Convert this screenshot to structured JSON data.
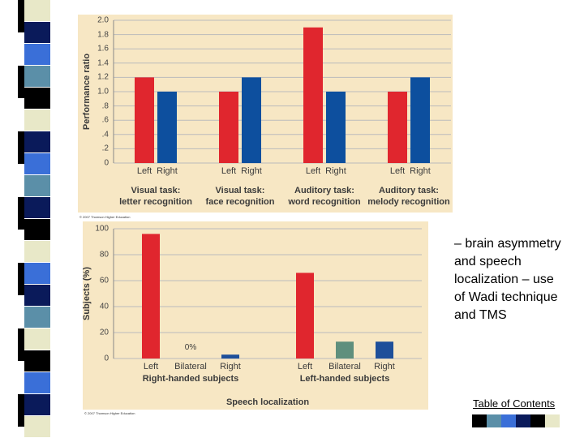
{
  "chart_data": [
    {
      "type": "bar",
      "ylabel": "Performance ratio",
      "categories": [
        "Visual task:\nletter recognition",
        "Visual task:\nface recognition",
        "Auditory task:\nword recognition",
        "Auditory task:\nmelody recognition"
      ],
      "series": [
        {
          "name": "Left",
          "color": "#e0262e",
          "values": [
            1.2,
            1.0,
            1.9,
            1.0
          ]
        },
        {
          "name": "Right",
          "color": "#0d4f9e",
          "values": [
            1.0,
            1.2,
            1.0,
            1.2
          ]
        }
      ],
      "ylim": [
        0,
        2.0
      ],
      "yticks": [
        0,
        {
          "value": 0.2,
          "label": ".2"
        },
        {
          "value": 0.4,
          "label": ".4"
        },
        {
          "value": 0.6,
          "label": ".6"
        },
        {
          "value": 0.8,
          "label": ".8"
        },
        {
          "value": 1.0,
          "label": "1.0"
        },
        {
          "value": 1.2,
          "label": "1.2"
        },
        {
          "value": 1.4,
          "label": "1.4"
        },
        {
          "value": 1.6,
          "label": "1.6"
        },
        {
          "value": 1.8,
          "label": "1.8"
        },
        {
          "value": 2.0,
          "label": "2.0"
        }
      ],
      "grid": true,
      "credit": "© 2007 Thomson Higher Education"
    },
    {
      "type": "bar",
      "ylabel": "Subjects (%)",
      "xlabel": "Speech localization",
      "categories": [
        "Left",
        "Bilateral",
        "Right"
      ],
      "colors": [
        "#e0262e",
        "#5f8f7d",
        "#1e4f9a"
      ],
      "series": [
        {
          "name": "Right-handed subjects",
          "values": [
            96,
            0,
            3
          ],
          "value_labels": [
            null,
            "0%",
            null
          ]
        },
        {
          "name": "Left-handed subjects",
          "values": [
            66,
            13,
            13
          ]
        }
      ],
      "ylim": [
        0,
        100
      ],
      "yticks": [
        0,
        20,
        40,
        60,
        80,
        100
      ],
      "grid": true,
      "credit": "© 2007 Thomson Higher Education"
    }
  ],
  "slide_text": "– brain asymmetry and speech localization – use of Wadi technique and TMS",
  "link": "Table of Contents"
}
